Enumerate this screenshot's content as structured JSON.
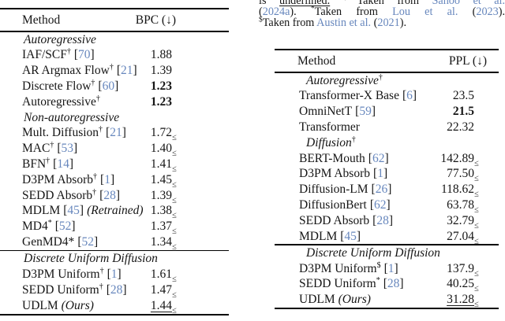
{
  "colors": {
    "link": "#6787bd",
    "text": "#151515"
  },
  "symbols": {
    "cite_open": "[",
    "cite_close": "]",
    "leq": "≤"
  },
  "caption": {
    "lines": [
      {
        "justify": true,
        "segments": [
          {
            "t": "is ",
            "s": "plain"
          },
          {
            "t": "underlined.",
            "s": "underline"
          },
          {
            "t": " ",
            "s": "plain"
          },
          {
            "t": "†",
            "s": "sup"
          },
          {
            "t": "Taken from ",
            "s": "plain"
          },
          {
            "t": "Sahoo et al.",
            "s": "link"
          }
        ]
      },
      {
        "justify": true,
        "segments": [
          {
            "t": "(",
            "s": "plain"
          },
          {
            "t": "2024a",
            "s": "link"
          },
          {
            "t": "). ",
            "s": "plain"
          },
          {
            "t": "*",
            "s": "sup"
          },
          {
            "t": "Taken from ",
            "s": "plain"
          },
          {
            "t": "Lou et al.",
            "s": "link"
          },
          {
            "t": " (",
            "s": "plain"
          },
          {
            "t": "2023",
            "s": "link"
          },
          {
            "t": ").",
            "s": "plain"
          }
        ]
      },
      {
        "justify": false,
        "segments": [
          {
            "t": "$",
            "s": "sup"
          },
          {
            "t": "Taken from ",
            "s": "plain"
          },
          {
            "t": "Austin et al.",
            "s": "link"
          },
          {
            "t": " (",
            "s": "plain"
          },
          {
            "t": "2021",
            "s": "link"
          },
          {
            "t": ").",
            "s": "plain"
          }
        ]
      }
    ]
  },
  "tables": [
    {
      "id": "bpc-table",
      "header": {
        "method": "Method",
        "metric": "BPC (↓)"
      },
      "sections": [
        {
          "title": "Autoregressive",
          "sup": "",
          "rule_before": false,
          "rows": [
            {
              "name": "IAF/SCF",
              "sup": "†",
              "cite": "70",
              "note": "",
              "value": "1.88",
              "bold": false,
              "underline": false,
              "leq": false
            },
            {
              "name": "AR Argmax Flow",
              "sup": "†",
              "cite": "21",
              "note": "",
              "value": "1.39",
              "bold": false,
              "underline": false,
              "leq": false
            },
            {
              "name": "Discrete Flow",
              "sup": "†",
              "cite": "60",
              "note": "",
              "value": "1.23",
              "bold": true,
              "underline": false,
              "leq": false
            },
            {
              "name": "Autoregressive",
              "sup": "†",
              "cite": "",
              "note": "",
              "value": "1.23",
              "bold": true,
              "underline": false,
              "leq": false
            }
          ]
        },
        {
          "title": "Non-autoregressive",
          "sup": "",
          "rule_before": false,
          "rows": [
            {
              "name": "Mult. Diffusion",
              "sup": "†",
              "cite": "21",
              "note": "",
              "value": "1.72",
              "bold": false,
              "underline": false,
              "leq": true
            },
            {
              "name": "MAC",
              "sup": "†",
              "cite": "53",
              "note": "",
              "value": "1.40",
              "bold": false,
              "underline": false,
              "leq": true
            },
            {
              "name": "BFN",
              "sup": "†",
              "cite": "14",
              "note": "",
              "value": "1.41",
              "bold": false,
              "underline": false,
              "leq": true
            },
            {
              "name": "D3PM Absorb",
              "sup": "†",
              "cite": "1",
              "note": "",
              "value": "1.45",
              "bold": false,
              "underline": false,
              "leq": true
            },
            {
              "name": "SEDD Absorb",
              "sup": "†",
              "cite": "28",
              "note": "",
              "value": "1.39",
              "bold": false,
              "underline": false,
              "leq": true
            },
            {
              "name": "MDLM",
              "sup": "",
              "cite": "45",
              "note": "(Retrained)",
              "value": "1.38",
              "bold": false,
              "underline": false,
              "leq": true
            },
            {
              "name": "MD4",
              "sup": "*",
              "cite": "52",
              "note": "",
              "value": "1.37",
              "bold": false,
              "underline": false,
              "leq": true
            },
            {
              "name": "GenMD4*",
              "sup": "",
              "cite": "52",
              "note": "",
              "value": "1.34",
              "bold": false,
              "underline": false,
              "leq": true
            }
          ]
        },
        {
          "title": "Discrete Uniform Diffusion",
          "sup": "",
          "rule_before": true,
          "rows": [
            {
              "name": "D3PM Uniform",
              "sup": "†",
              "cite": "1",
              "note": "",
              "value": "1.61",
              "bold": false,
              "underline": false,
              "leq": true
            },
            {
              "name": "SEDD Uniform",
              "sup": "†",
              "cite": "28",
              "note": "",
              "value": "1.47",
              "bold": false,
              "underline": false,
              "leq": true
            },
            {
              "name": "UDLM",
              "sup": "",
              "cite": "",
              "note": "(Ours)",
              "value": "1.44",
              "bold": false,
              "underline": true,
              "leq": true
            }
          ]
        }
      ]
    },
    {
      "id": "ppl-table",
      "header": {
        "method": "Method",
        "metric": "PPL (↓)"
      },
      "sections": [
        {
          "title": "Autoregressive",
          "sup": "†",
          "rule_before": false,
          "rows": [
            {
              "name": "Transformer-X Base",
              "sup": "",
              "cite": "6",
              "note": "",
              "value": "23.5",
              "bold": false,
              "underline": false,
              "leq": false
            },
            {
              "name": "OmniNetT",
              "sup": "",
              "cite": "59",
              "note": "",
              "value": "21.5",
              "bold": true,
              "underline": false,
              "leq": false
            },
            {
              "name": "Transformer",
              "sup": "",
              "cite": "",
              "note": "",
              "value": "22.32",
              "bold": false,
              "underline": false,
              "leq": false
            }
          ]
        },
        {
          "title": "Diffusion",
          "sup": "†",
          "rule_before": false,
          "rows": [
            {
              "name": "BERT-Mouth",
              "sup": "",
              "cite": "62",
              "note": "",
              "value": "142.89",
              "bold": false,
              "underline": false,
              "leq": true
            },
            {
              "name": "D3PM Absorb",
              "sup": "",
              "cite": "1",
              "note": "",
              "value": "77.50",
              "bold": false,
              "underline": false,
              "leq": true
            },
            {
              "name": "Diffusion-LM",
              "sup": "",
              "cite": "26",
              "note": "",
              "value": "118.62",
              "bold": false,
              "underline": false,
              "leq": true
            },
            {
              "name": "DiffusionBert",
              "sup": "",
              "cite": "62",
              "note": "",
              "value": "63.78",
              "bold": false,
              "underline": false,
              "leq": true
            },
            {
              "name": "SEDD Absorb",
              "sup": "",
              "cite": "28",
              "note": "",
              "value": "32.79",
              "bold": false,
              "underline": false,
              "leq": true
            },
            {
              "name": "MDLM",
              "sup": "",
              "cite": "45",
              "note": "",
              "value": "27.04",
              "bold": false,
              "underline": false,
              "leq": true
            }
          ]
        },
        {
          "title": "Discrete Uniform Diffusion",
          "sup": "",
          "rule_before": true,
          "rows": [
            {
              "name": "D3PM Uniform",
              "sup": "$",
              "cite": "1",
              "note": "",
              "value": "137.9",
              "bold": false,
              "underline": false,
              "leq": true
            },
            {
              "name": "SEDD Uniform",
              "sup": "*",
              "cite": "28",
              "note": "",
              "value": "40.25",
              "bold": false,
              "underline": false,
              "leq": true
            },
            {
              "name": "UDLM",
              "sup": "",
              "cite": "",
              "note": "(Ours)",
              "value": "31.28",
              "bold": false,
              "underline": true,
              "leq": true
            }
          ]
        }
      ]
    }
  ]
}
